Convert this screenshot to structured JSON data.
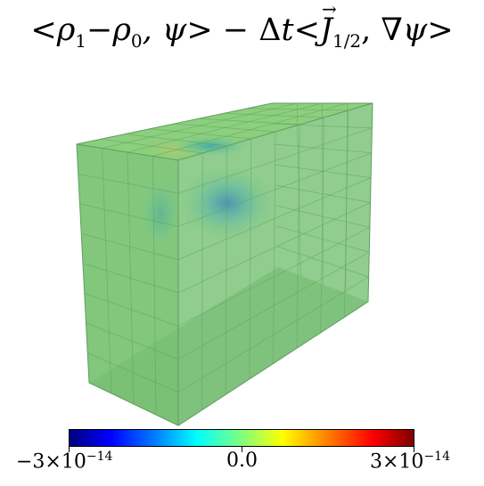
{
  "title": {
    "lt1": "<",
    "rho": "ρ",
    "sub1": "1",
    "minus1": "−",
    "rho2": "ρ",
    "sub0": "0",
    "comma_psi": ", ψ",
    "gt1": ">",
    "minus2": " − Δ",
    "t": "t",
    "lt2": "<",
    "J": "J",
    "arrow": "→",
    "subhalf": "1/2",
    "comma_nabla": ", ∇",
    "psi2": "ψ",
    "gt2": ">"
  },
  "colorbar": {
    "min_base": "−3×10",
    "min_exp": "−14",
    "mid": "0.0",
    "max_base": "3×10",
    "max_exp": "−14",
    "colormap": "jet",
    "min_value": -3e-14,
    "max_value": 3e-14
  },
  "box": {
    "face_color": "#7ac77a",
    "top_color": "#8ccf7e",
    "edge_color": "#5a9a5a"
  }
}
